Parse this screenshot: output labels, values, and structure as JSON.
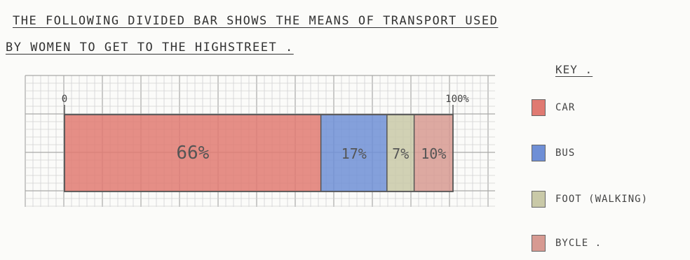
{
  "title_line1": "THE FOLLOWING DIVIDED BAR SHOWS THE MEANS OF TRANSPORT USED",
  "title_line2": "BY WOMEN TO GET TO THE HIGHSTREET .",
  "chart_data": {
    "type": "bar",
    "subtype": "divided-bar",
    "axis_start_label": "0",
    "axis_end_label": "100%",
    "xlim": [
      0,
      100
    ],
    "grid": true,
    "legend_position": "right",
    "legend_title": "KEY .",
    "segments": [
      {
        "name": "CAR",
        "value": 66,
        "label": "66%",
        "color": "#e07a72"
      },
      {
        "name": "BUS",
        "value": 17,
        "label": "17%",
        "color": "#6f8fd6"
      },
      {
        "name": "FOOT (WALKING)",
        "value": 7,
        "label": "7%",
        "color": "#c9c9a8"
      },
      {
        "name": "BYCLE .",
        "value": 10,
        "label": "10%",
        "color": "#d79a92"
      }
    ]
  }
}
